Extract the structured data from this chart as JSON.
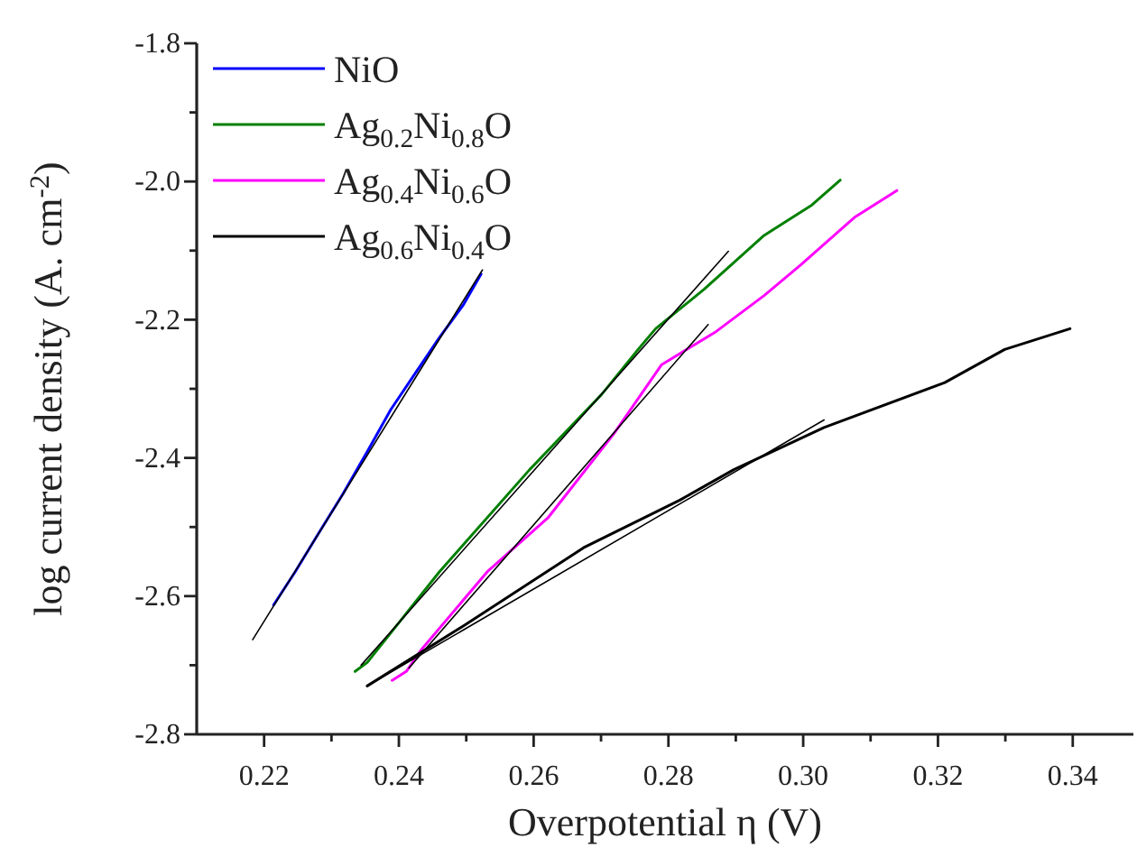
{
  "chart_data": {
    "type": "line",
    "xlabel": "Overpotential η (V)",
    "ylabel": "log current density (A. cm$^{-2}$)",
    "xlim": [
      0.21,
      0.349
    ],
    "ylim": [
      -2.8,
      -1.8
    ],
    "xticks": [
      0.22,
      {
        "value": 0.23,
        "label": null
      },
      0.24,
      {
        "value": 0.25,
        "label": null
      },
      0.26,
      {
        "value": 0.27,
        "label": null
      },
      0.28,
      {
        "value": 0.29,
        "label": null
      },
      {
        "value": 0.3,
        "label": "0.30"
      },
      {
        "value": 0.31,
        "label": null
      },
      0.32,
      {
        "value": 0.33,
        "label": null
      },
      0.34
    ],
    "yticks": [
      -2.8,
      {
        "value": -2.7,
        "label": null
      },
      -2.6,
      {
        "value": -2.5,
        "label": null
      },
      -2.4,
      {
        "value": -2.3,
        "label": null
      },
      -2.2,
      {
        "value": -2.1,
        "label": null
      },
      {
        "value": -2,
        "label": "-2.0"
      },
      {
        "value": -1.9,
        "label": null
      },
      -1.8
    ],
    "legend": "top left",
    "grid": false,
    "line_style": "solid",
    "marker": "none",
    "series": [
      {
        "name": "NiO",
        "color": "#0000ff",
        "x": [
          0.2214,
          0.2246,
          0.2281,
          0.2317,
          0.2353,
          0.2388,
          0.2424,
          0.246,
          0.2496,
          0.2522
        ],
        "values": [
          -2.613,
          -2.565,
          -2.509,
          -2.452,
          -2.391,
          -2.33,
          -2.278,
          -2.226,
          -2.178,
          -2.134
        ]
      },
      {
        "name": "Ag$_{0.2}$Ni$_{0.8}$O",
        "color": "#008000",
        "x": [
          0.2335,
          0.2353,
          0.246,
          0.2594,
          0.2701,
          0.2755,
          0.2781,
          0.2853,
          0.2942,
          0.3013,
          0.3055
        ],
        "values": [
          -2.709,
          -2.696,
          -2.565,
          -2.417,
          -2.308,
          -2.243,
          -2.213,
          -2.156,
          -2.078,
          -2.034,
          -1.998
        ]
      },
      {
        "name": "Ag$_{0.4}$Ni$_{0.6}$O",
        "color": "#ff00ff",
        "x": [
          0.239,
          0.2411,
          0.2433,
          0.2531,
          0.2621,
          0.2719,
          0.279,
          0.2871,
          0.2942,
          0.2996,
          0.3076,
          0.3139
        ],
        "values": [
          -2.722,
          -2.709,
          -2.678,
          -2.565,
          -2.487,
          -2.365,
          -2.265,
          -2.217,
          -2.165,
          -2.121,
          -2.052,
          -2.013
        ]
      },
      {
        "name": "Ag$_{0.6}$Ni$_{0.4}$O",
        "color": "#000000",
        "x": [
          0.2353,
          0.2496,
          0.2674,
          0.2817,
          0.2897,
          0.3031,
          0.321,
          0.3299,
          0.3396
        ],
        "values": [
          -2.73,
          -2.643,
          -2.53,
          -2.461,
          -2.417,
          -2.356,
          -2.291,
          -2.243,
          -2.213
        ]
      },
      {
        "color": "#000000",
        "x": [
          0.2183,
          0.2524
        ],
        "values": [
          -2.663,
          -2.128
        ]
      },
      {
        "color": "#000000",
        "x": [
          0.2344,
          0.2889
        ],
        "values": [
          -2.7,
          -2.101
        ]
      },
      {
        "color": "#000000",
        "x": [
          0.2415,
          0.2859
        ],
        "values": [
          -2.704,
          -2.207
        ]
      },
      {
        "color": "#000000",
        "x": [
          0.2353,
          0.3031
        ],
        "values": [
          -2.73,
          -2.345
        ]
      }
    ]
  }
}
